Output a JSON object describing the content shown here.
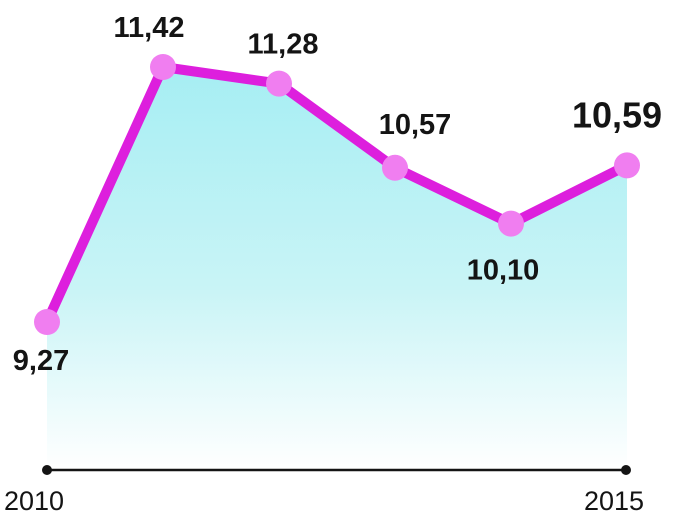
{
  "chart_data": {
    "type": "area",
    "x": [
      "2010",
      "2011",
      "2012",
      "2013",
      "2014",
      "2015"
    ],
    "tick_labels": [
      "2010",
      "2015"
    ],
    "values": [
      9.27,
      11.42,
      11.28,
      10.57,
      10.1,
      10.59
    ],
    "value_labels": [
      "9,27",
      "11,42",
      "11,28",
      "10,57",
      "10,10",
      "10,59"
    ],
    "title": "",
    "xlabel": "",
    "ylabel": "",
    "grid": false,
    "legend": "none",
    "colors": {
      "line": "#dd1fdd",
      "marker": "#f07ef0",
      "fill_top": "#a6eef3",
      "fill_bottom": "#ffffff",
      "axis": "#141414"
    }
  }
}
